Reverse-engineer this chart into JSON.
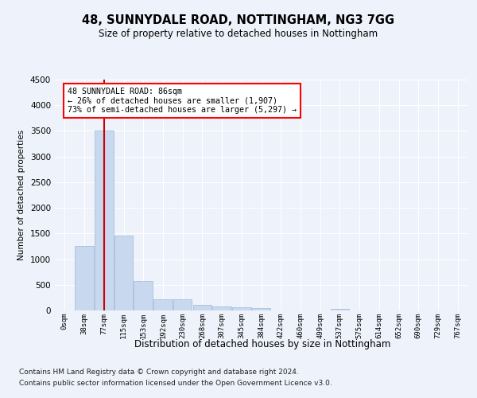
{
  "title1": "48, SUNNYDALE ROAD, NOTTINGHAM, NG3 7GG",
  "title2": "Size of property relative to detached houses in Nottingham",
  "xlabel": "Distribution of detached houses by size in Nottingham",
  "ylabel": "Number of detached properties",
  "footnote1": "Contains HM Land Registry data © Crown copyright and database right 2024.",
  "footnote2": "Contains public sector information licensed under the Open Government Licence v3.0.",
  "bin_labels": [
    "0sqm",
    "38sqm",
    "77sqm",
    "115sqm",
    "153sqm",
    "192sqm",
    "230sqm",
    "268sqm",
    "307sqm",
    "345sqm",
    "384sqm",
    "422sqm",
    "460sqm",
    "499sqm",
    "537sqm",
    "575sqm",
    "614sqm",
    "652sqm",
    "690sqm",
    "729sqm",
    "767sqm"
  ],
  "bar_values": [
    5,
    1250,
    3500,
    1460,
    570,
    215,
    215,
    110,
    75,
    65,
    45,
    0,
    0,
    0,
    35,
    0,
    0,
    0,
    0,
    0,
    0
  ],
  "bar_color": "#c8d8ee",
  "bar_edge_color": "#a0b8d8",
  "ylim": [
    0,
    4500
  ],
  "yticks": [
    0,
    500,
    1000,
    1500,
    2000,
    2500,
    3000,
    3500,
    4000,
    4500
  ],
  "property_bin_index": 2,
  "annotation_text1": "48 SUNNYDALE ROAD: 86sqm",
  "annotation_text2": "← 26% of detached houses are smaller (1,907)",
  "annotation_text3": "73% of semi-detached houses are larger (5,297) →",
  "annotation_box_color": "white",
  "annotation_box_edge_color": "red",
  "red_line_color": "#cc0000",
  "background_color": "#eef2fa",
  "grid_color": "white"
}
